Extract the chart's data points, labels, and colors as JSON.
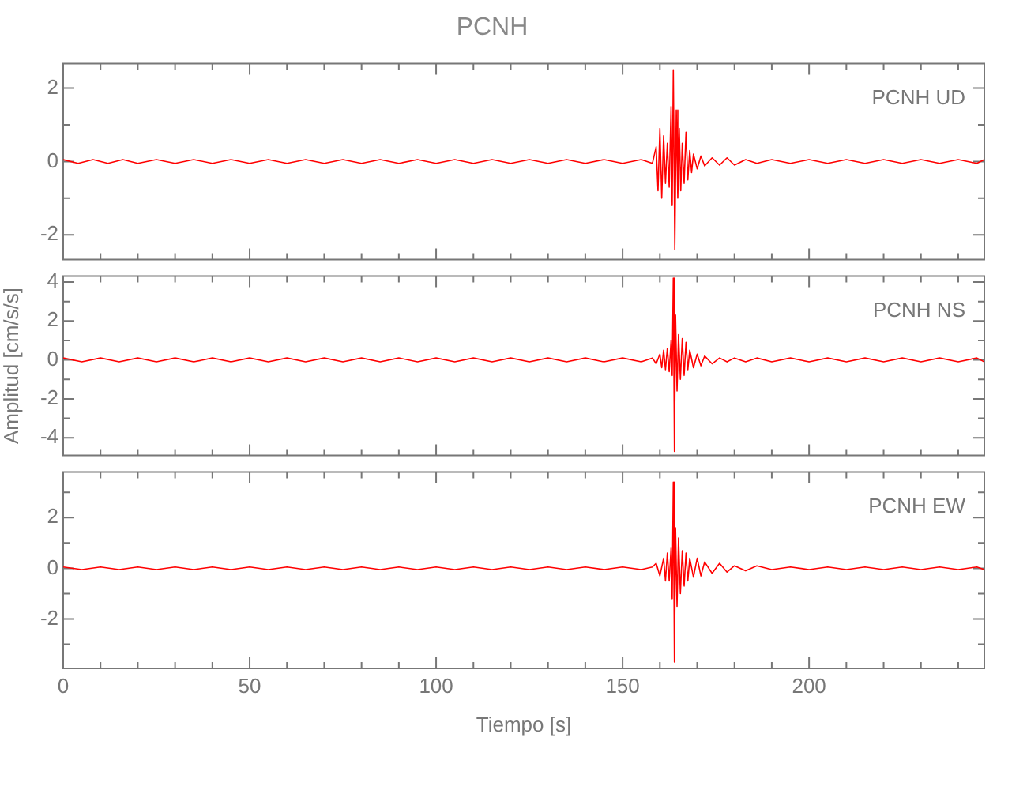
{
  "chart_data": [
    {
      "type": "line",
      "title": "PCNH",
      "annotations": [
        "PCNH UD"
      ],
      "tick_labels": "y",
      "marker": "none",
      "line_style": "solid",
      "xlim": [
        0,
        247
      ],
      "xticks": [
        0,
        {
          "value": 10,
          "label": null
        },
        {
          "value": 20,
          "label": null
        },
        {
          "value": 30,
          "label": null
        },
        {
          "value": 40,
          "label": null
        },
        50,
        {
          "value": 60,
          "label": null
        },
        {
          "value": 70,
          "label": null
        },
        {
          "value": 80,
          "label": null
        },
        {
          "value": 90,
          "label": null
        },
        100,
        {
          "value": 110,
          "label": null
        },
        {
          "value": 120,
          "label": null
        },
        {
          "value": 130,
          "label": null
        },
        {
          "value": 140,
          "label": null
        },
        150,
        {
          "value": 160,
          "label": null
        },
        {
          "value": 170,
          "label": null
        },
        {
          "value": 180,
          "label": null
        },
        {
          "value": 190,
          "label": null
        },
        200,
        {
          "value": 210,
          "label": null
        },
        {
          "value": 220,
          "label": null
        },
        {
          "value": 230,
          "label": null
        },
        {
          "value": 240,
          "label": null
        }
      ],
      "ylim": [
        -2.67,
        2.67
      ],
      "yticks": [
        -2,
        {
          "value": -1,
          "label": null
        },
        0,
        {
          "value": 1,
          "label": null
        },
        2
      ],
      "x": [
        0,
        4,
        8,
        12,
        16,
        20,
        25,
        30,
        35,
        40,
        45,
        50,
        55,
        60,
        65,
        70,
        75,
        80,
        85,
        90,
        95,
        100,
        105,
        110,
        115,
        120,
        125,
        130,
        135,
        140,
        145,
        150,
        155,
        158,
        159,
        159.5,
        160,
        160.5,
        161,
        161.5,
        162,
        162.5,
        163,
        163.3,
        163.6,
        164,
        164.4,
        164.8,
        165.2,
        165.6,
        166,
        166.5,
        167,
        167.5,
        168,
        168.5,
        169,
        170,
        171,
        172,
        174,
        176,
        178,
        180,
        183,
        186,
        190,
        195,
        200,
        205,
        210,
        215,
        220,
        225,
        230,
        235,
        240,
        245,
        247
      ],
      "series": [
        {
          "color": "#ff0000",
          "values": [
            0.05,
            -0.05,
            0.05,
            -0.05,
            0.05,
            -0.05,
            0.05,
            -0.05,
            0.05,
            -0.05,
            0.05,
            -0.05,
            0.05,
            -0.05,
            0.05,
            -0.05,
            0.05,
            -0.05,
            0.05,
            -0.05,
            0.05,
            -0.05,
            0.05,
            -0.05,
            0.05,
            -0.05,
            0.05,
            -0.05,
            0.05,
            -0.05,
            0.05,
            -0.05,
            0.05,
            -0.05,
            0.4,
            -0.8,
            0.9,
            -1.0,
            0.7,
            -0.6,
            0.5,
            -0.7,
            1.5,
            -1.2,
            2.5,
            -2.4,
            1.4,
            -1.0,
            0.9,
            -0.8,
            0.5,
            -0.6,
            0.8,
            -0.5,
            0.3,
            -0.3,
            0.2,
            -0.2,
            0.15,
            -0.12,
            0.1,
            -0.1,
            0.1,
            -0.1,
            0.05,
            -0.05,
            0.05,
            -0.05,
            0.05,
            -0.05,
            0.05,
            -0.05,
            0.05,
            -0.05,
            0.05,
            -0.05,
            0.05,
            -0.05,
            0.05
          ]
        }
      ]
    },
    {
      "type": "line",
      "ylabel": "Amplitud [cm/s/s]",
      "annotations": [
        "PCNH NS"
      ],
      "tick_labels": "y",
      "marker": "none",
      "line_style": "solid",
      "xlim": [
        0,
        247
      ],
      "xticks": [
        0,
        {
          "value": 10,
          "label": null
        },
        {
          "value": 20,
          "label": null
        },
        {
          "value": 30,
          "label": null
        },
        {
          "value": 40,
          "label": null
        },
        50,
        {
          "value": 60,
          "label": null
        },
        {
          "value": 70,
          "label": null
        },
        {
          "value": 80,
          "label": null
        },
        {
          "value": 90,
          "label": null
        },
        100,
        {
          "value": 110,
          "label": null
        },
        {
          "value": 120,
          "label": null
        },
        {
          "value": 130,
          "label": null
        },
        {
          "value": 140,
          "label": null
        },
        150,
        {
          "value": 160,
          "label": null
        },
        {
          "value": 170,
          "label": null
        },
        {
          "value": 180,
          "label": null
        },
        {
          "value": 190,
          "label": null
        },
        200,
        {
          "value": 210,
          "label": null
        },
        {
          "value": 220,
          "label": null
        },
        {
          "value": 230,
          "label": null
        },
        {
          "value": 240,
          "label": null
        }
      ],
      "ylim": [
        -4.9,
        4.3
      ],
      "yticks": [
        -4,
        {
          "value": -3,
          "label": null
        },
        -2,
        {
          "value": -1,
          "label": null
        },
        0,
        {
          "value": 1,
          "label": null
        },
        2,
        {
          "value": 3,
          "label": null
        },
        4
      ],
      "x": [
        0,
        5,
        10,
        15,
        20,
        25,
        30,
        35,
        40,
        45,
        50,
        55,
        60,
        65,
        70,
        75,
        80,
        85,
        90,
        95,
        100,
        105,
        110,
        115,
        120,
        125,
        130,
        135,
        140,
        145,
        150,
        155,
        158,
        159,
        160,
        160.5,
        161,
        161.5,
        162,
        162.5,
        163,
        163.3,
        163.6,
        163.9,
        164.2,
        164.6,
        165,
        165.5,
        166,
        166.5,
        167,
        167.5,
        168,
        169,
        170,
        171,
        172,
        174,
        176,
        178,
        180,
        183,
        186,
        190,
        195,
        200,
        205,
        210,
        215,
        220,
        225,
        230,
        235,
        240,
        245,
        247
      ],
      "series": [
        {
          "color": "#ff0000",
          "values": [
            0.1,
            -0.1,
            0.1,
            -0.1,
            0.1,
            -0.1,
            0.1,
            -0.1,
            0.1,
            -0.1,
            0.1,
            -0.1,
            0.1,
            -0.1,
            0.1,
            -0.1,
            0.1,
            -0.1,
            0.1,
            -0.1,
            0.1,
            -0.1,
            0.1,
            -0.1,
            0.1,
            -0.1,
            0.1,
            -0.1,
            0.1,
            -0.1,
            0.1,
            -0.1,
            0.1,
            -0.2,
            0.3,
            -0.4,
            0.5,
            -0.5,
            0.6,
            -0.6,
            1.0,
            -0.8,
            4.2,
            -4.7,
            2.3,
            -1.6,
            1.3,
            -1.0,
            1.1,
            -0.8,
            0.9,
            -0.5,
            0.5,
            -0.4,
            0.3,
            -0.3,
            0.2,
            -0.2,
            0.1,
            -0.1,
            0.1,
            -0.1,
            0.1,
            -0.1,
            0.1,
            -0.1,
            0.1,
            -0.1,
            0.1,
            -0.1,
            0.1,
            -0.1,
            0.1,
            -0.1,
            0.1,
            -0.1
          ]
        }
      ]
    },
    {
      "type": "line",
      "xlabel": "Tiempo [s]",
      "annotations": [
        "PCNH EW"
      ],
      "marker": "none",
      "line_style": "solid",
      "xlim": [
        0,
        247
      ],
      "xticks": [
        0,
        {
          "value": 10,
          "label": null
        },
        {
          "value": 20,
          "label": null
        },
        {
          "value": 30,
          "label": null
        },
        {
          "value": 40,
          "label": null
        },
        50,
        {
          "value": 60,
          "label": null
        },
        {
          "value": 70,
          "label": null
        },
        {
          "value": 80,
          "label": null
        },
        {
          "value": 90,
          "label": null
        },
        100,
        {
          "value": 110,
          "label": null
        },
        {
          "value": 120,
          "label": null
        },
        {
          "value": 130,
          "label": null
        },
        {
          "value": 140,
          "label": null
        },
        150,
        {
          "value": 160,
          "label": null
        },
        {
          "value": 170,
          "label": null
        },
        {
          "value": 180,
          "label": null
        },
        {
          "value": 190,
          "label": null
        },
        200,
        {
          "value": 210,
          "label": null
        },
        {
          "value": 220,
          "label": null
        },
        {
          "value": 230,
          "label": null
        },
        {
          "value": 240,
          "label": null
        }
      ],
      "ylim": [
        -3.95,
        3.8
      ],
      "yticks": [
        {
          "value": -3,
          "label": null
        },
        -2,
        {
          "value": -1,
          "label": null
        },
        0,
        {
          "value": 1,
          "label": null
        },
        2,
        {
          "value": 3,
          "label": null
        }
      ],
      "x": [
        0,
        5,
        10,
        15,
        20,
        25,
        30,
        35,
        40,
        45,
        50,
        55,
        60,
        65,
        70,
        75,
        80,
        85,
        90,
        95,
        100,
        105,
        110,
        115,
        120,
        125,
        130,
        135,
        140,
        145,
        150,
        155,
        158,
        159,
        160,
        161,
        161.5,
        162,
        162.5,
        163,
        163.3,
        163.6,
        163.9,
        164.2,
        164.6,
        165,
        165.5,
        166,
        166.5,
        167,
        167.5,
        168,
        169,
        170,
        171,
        172,
        174,
        176,
        178,
        180,
        183,
        186,
        190,
        195,
        200,
        205,
        210,
        215,
        220,
        225,
        230,
        235,
        240,
        245,
        247
      ],
      "series": [
        {
          "color": "#ff0000",
          "values": [
            0.05,
            -0.05,
            0.05,
            -0.05,
            0.05,
            -0.05,
            0.05,
            -0.05,
            0.05,
            -0.05,
            0.05,
            -0.05,
            0.05,
            -0.05,
            0.05,
            -0.05,
            0.05,
            -0.05,
            0.05,
            -0.05,
            0.05,
            -0.05,
            0.05,
            -0.05,
            0.05,
            -0.05,
            0.05,
            -0.05,
            0.05,
            -0.05,
            0.05,
            -0.05,
            0.05,
            0.2,
            -0.3,
            0.4,
            -0.5,
            0.6,
            -0.5,
            0.8,
            -1.2,
            3.4,
            -3.7,
            1.6,
            -1.5,
            1.2,
            -1.0,
            0.7,
            -0.7,
            0.6,
            -0.5,
            0.4,
            -0.35,
            0.4,
            -0.3,
            0.25,
            -0.2,
            0.2,
            -0.15,
            0.1,
            -0.1,
            0.1,
            -0.05,
            0.05,
            -0.05,
            0.05,
            -0.05,
            0.05,
            -0.05,
            0.05,
            -0.05,
            0.05,
            -0.05,
            0.05,
            -0.05
          ]
        }
      ]
    }
  ]
}
